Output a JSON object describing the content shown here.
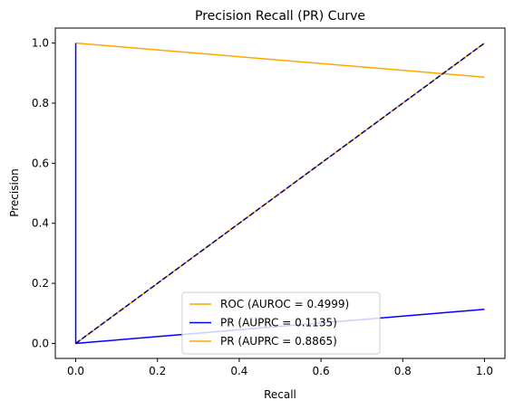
{
  "chart_data": {
    "type": "line",
    "title": "Precision Recall (PR) Curve",
    "xlabel": "Recall",
    "ylabel": "Precision",
    "xlim": [
      -0.05,
      1.05
    ],
    "ylim": [
      -0.05,
      1.05
    ],
    "xticks": [
      0.0,
      0.2,
      0.4,
      0.6,
      0.8,
      1.0
    ],
    "yticks": [
      0.0,
      0.2,
      0.4,
      0.6,
      0.8,
      1.0
    ],
    "xtick_labels": [
      "0.0",
      "0.2",
      "0.4",
      "0.6",
      "0.8",
      "1.0"
    ],
    "ytick_labels": [
      "0.0",
      "0.2",
      "0.4",
      "0.6",
      "0.8",
      "1.0"
    ],
    "grid": false,
    "legend_position": "lower-center",
    "series": [
      {
        "name": "ROC (AUROC = 0.4999)",
        "color": "#ffa500",
        "dash": "solid",
        "x": [
          0.0,
          1.0
        ],
        "y": [
          1.0,
          0.8865
        ]
      },
      {
        "name": "PR (AUPRC = 0.1135)",
        "color": "#0000ff",
        "dash": "solid",
        "x": [
          0.0,
          0.0,
          1.0
        ],
        "y": [
          1.0,
          0.0,
          0.1135
        ]
      },
      {
        "name": "PR (AUPRC = 0.8865)",
        "color": "#ffa500",
        "dash": "solid",
        "x": [
          0.0,
          1.0
        ],
        "y": [
          0.0,
          1.0
        ]
      }
    ],
    "reference_line": {
      "color": "#00008b",
      "dash": "dashed",
      "x": [
        0.0,
        1.0
      ],
      "y": [
        0.0,
        1.0
      ]
    }
  }
}
